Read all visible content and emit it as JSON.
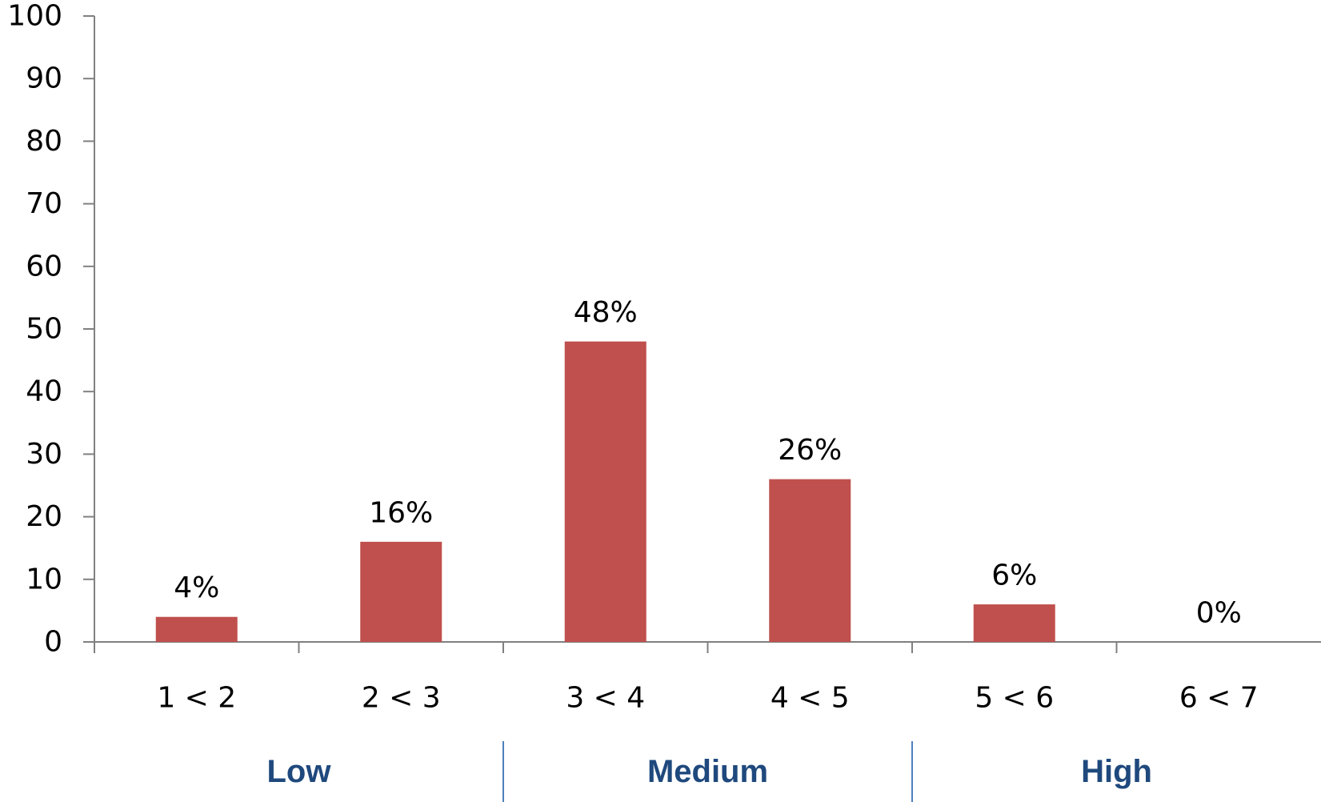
{
  "chart_data": {
    "type": "bar",
    "categories": [
      "1 < 2",
      "2 < 3",
      "3 < 4",
      "4 < 5",
      "5 < 6",
      "6 < 7"
    ],
    "values": [
      4,
      16,
      48,
      26,
      6,
      0
    ],
    "data_labels": [
      "4%",
      "16%",
      "48%",
      "26%",
      "6%",
      "0%"
    ],
    "title": "",
    "xlabel": "",
    "ylabel": "",
    "ylim": [
      0,
      100
    ],
    "yticks": [
      "0",
      "10",
      "20",
      "30",
      "40",
      "50",
      "60",
      "70",
      "80",
      "90",
      "100"
    ],
    "grid": false,
    "legend": "none",
    "groups": [
      {
        "label": "Low",
        "span": [
          0,
          1
        ]
      },
      {
        "label": "Medium",
        "span": [
          2,
          3
        ]
      },
      {
        "label": "High",
        "span": [
          4,
          5
        ]
      }
    ],
    "colors": {
      "bar": "#c0504d",
      "axis": "#808080",
      "group_label": "#1f497d",
      "group_divider": "#4f81bd"
    }
  }
}
